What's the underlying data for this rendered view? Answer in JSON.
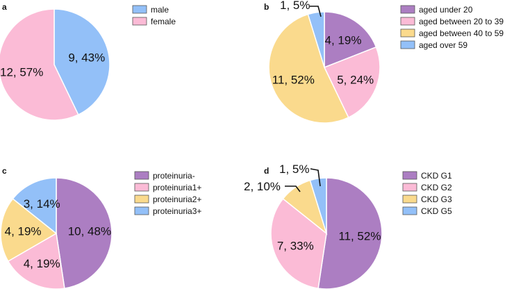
{
  "chart_data": [
    {
      "type": "pie",
      "panel": "a",
      "categories": [
        "male",
        "female"
      ],
      "values": [
        9,
        12
      ],
      "percents": [
        "43%",
        "57%"
      ],
      "labels": [
        "9, 43%",
        "12, 57%"
      ],
      "colors": [
        "#93c0f8",
        "#fbbbd6"
      ],
      "legend_position": "right"
    },
    {
      "type": "pie",
      "panel": "b",
      "categories": [
        "aged under 20",
        "aged between 20 to 39",
        "aged between 40 to 59",
        "aged over 59"
      ],
      "values": [
        4,
        5,
        11,
        1
      ],
      "percents": [
        "19%",
        "24%",
        "52%",
        "5%"
      ],
      "labels": [
        "4, 19%",
        "5, 24%",
        "11, 52%",
        "1, 5%"
      ],
      "colors": [
        "#ac7ec2",
        "#fbbbd6",
        "#fada8d",
        "#93c0f8"
      ],
      "legend_position": "right"
    },
    {
      "type": "pie",
      "panel": "c",
      "categories": [
        "proteinuria-",
        "proteinuria1+",
        "proteinuria2+",
        "proteinuria3+"
      ],
      "values": [
        10,
        4,
        4,
        3
      ],
      "percents": [
        "48%",
        "19%",
        "19%",
        "14%"
      ],
      "labels": [
        "10, 48%",
        "4, 19%",
        "4, 19%",
        "3, 14%"
      ],
      "colors": [
        "#ac7ec2",
        "#fbbbd6",
        "#fada8d",
        "#93c0f8"
      ],
      "legend_position": "right"
    },
    {
      "type": "pie",
      "panel": "d",
      "categories": [
        "CKD G1",
        "CKD G2",
        "CKD G3",
        "CKD G5"
      ],
      "values": [
        11,
        7,
        2,
        1
      ],
      "percents": [
        "52%",
        "33%",
        "10%",
        "5%"
      ],
      "labels": [
        "11, 52%",
        "7, 33%",
        "2, 10%",
        "1, 5%"
      ],
      "colors": [
        "#ac7ec2",
        "#fbbbd6",
        "#fada8d",
        "#93c0f8"
      ],
      "legend_position": "right"
    }
  ]
}
